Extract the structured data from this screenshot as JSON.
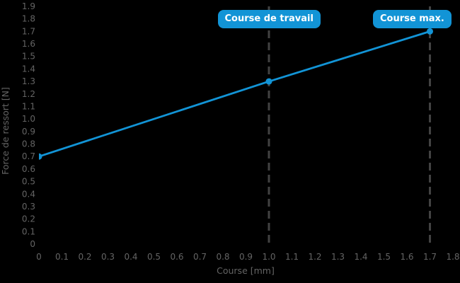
{
  "chart_data": {
    "type": "line",
    "title": "",
    "xlabel": "Course [mm]",
    "ylabel": "Force de ressort [N]",
    "xlim": [
      0,
      1.8
    ],
    "ylim": [
      0,
      1.9
    ],
    "x_ticks": [
      "0",
      "0.1",
      "0.2",
      "0.3",
      "0.4",
      "0.5",
      "0.6",
      "0.7",
      "0.8",
      "0.9",
      "1.0",
      "1.1",
      "1.2",
      "1.3",
      "1.4",
      "1.5",
      "1.6",
      "1.7",
      "1.8"
    ],
    "y_ticks": [
      "0",
      "0.1",
      "0.2",
      "0.3",
      "0.4",
      "0.5",
      "0.6",
      "0.7",
      "0.8",
      "0.9",
      "1.0",
      "1.1",
      "1.2",
      "1.3",
      "1.4",
      "1.5",
      "1.6",
      "1.7",
      "1.8",
      "1.9"
    ],
    "grid": false,
    "legend": false,
    "series": [
      {
        "x": [
          0,
          1.0,
          1.7
        ],
        "y": [
          0.7,
          1.3,
          1.7
        ]
      }
    ],
    "markers": [
      {
        "x": 0,
        "y": 0.7
      },
      {
        "x": 1.0,
        "y": 1.3
      },
      {
        "x": 1.7,
        "y": 1.7
      }
    ],
    "annotations": [
      {
        "label": "Course de travail",
        "x": 1.0
      },
      {
        "label": "Course max.",
        "x": 1.7
      }
    ]
  },
  "colors": {
    "background": "#000000",
    "accent_blue": "#1294d6",
    "annotation_text": "#ffffff",
    "dashed_line": "#424242",
    "axis_text": "#646464"
  }
}
